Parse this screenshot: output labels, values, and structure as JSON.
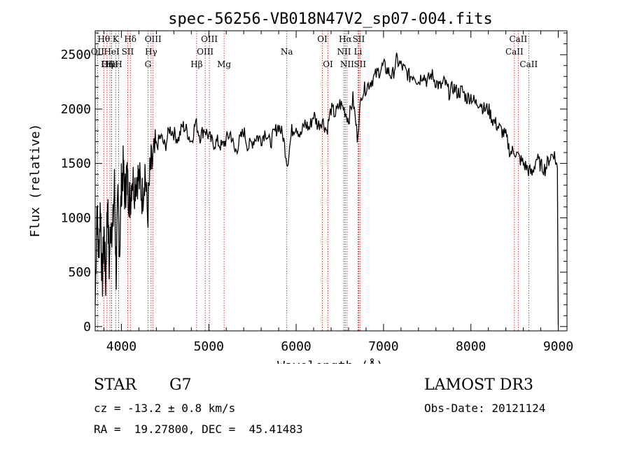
{
  "chart_data": {
    "type": "line",
    "title": "spec-56256-VB018N47V2_sp07-004.fits",
    "xlabel": "Wavelength (Å)",
    "ylabel": "Flux (relative)",
    "xlim": [
      3700,
      9100
    ],
    "ylim": [
      -40,
      2720
    ],
    "xticks": [
      4000,
      5000,
      6000,
      7000,
      8000,
      9000
    ],
    "yticks": [
      0,
      500,
      1000,
      1500,
      2000,
      2500
    ],
    "grid": false,
    "line_color": "#000000",
    "marker_color": "#cc0000",
    "spectral_lines": [
      {
        "label": "Hθ",
        "wavelength": 3798,
        "row": 1
      },
      {
        "label": "OII",
        "wavelength": 3727,
        "row": 2
      },
      {
        "label": "OIII",
        "wavelength": 3869,
        "row": 3
      },
      {
        "label": "Hε",
        "wavelength": 3889,
        "row": 3
      },
      {
        "label": "K",
        "wavelength": 3934,
        "row": 1
      },
      {
        "label": "HeI",
        "wavelength": 3889,
        "row": 2
      },
      {
        "label": "SII",
        "wavelength": 4072,
        "row": 2
      },
      {
        "label": "Hη",
        "wavelength": 3835,
        "row": 3
      },
      {
        "label": "H",
        "wavelength": 3968,
        "row": 3
      },
      {
        "label": "Hδ",
        "wavelength": 4102,
        "row": 1
      },
      {
        "label": "OIII",
        "wavelength": 4363,
        "row": 1
      },
      {
        "label": "Hγ",
        "wavelength": 4340,
        "row": 2
      },
      {
        "label": "G",
        "wavelength": 4304,
        "row": 3
      },
      {
        "label": "Hβ",
        "wavelength": 4861,
        "row": 3
      },
      {
        "label": "OIII",
        "wavelength": 5007,
        "row": 1
      },
      {
        "label": "OIII",
        "wavelength": 4959,
        "row": 2
      },
      {
        "label": "Mg",
        "wavelength": 5175,
        "row": 3
      },
      {
        "label": "Na",
        "wavelength": 5893,
        "row": 2
      },
      {
        "label": "OI",
        "wavelength": 6300,
        "row": 1
      },
      {
        "label": "OI",
        "wavelength": 6364,
        "row": 3
      },
      {
        "label": "Hα",
        "wavelength": 6563,
        "row": 1
      },
      {
        "label": "SII",
        "wavelength": 6716,
        "row": 1
      },
      {
        "label": "NII",
        "wavelength": 6548,
        "row": 2
      },
      {
        "label": "Li",
        "wavelength": 6708,
        "row": 2
      },
      {
        "label": "NII",
        "wavelength": 6583,
        "row": 3
      },
      {
        "label": "SII",
        "wavelength": 6731,
        "row": 3
      },
      {
        "label": "CaII",
        "wavelength": 8542,
        "row": 1
      },
      {
        "label": "CaII",
        "wavelength": 8498,
        "row": 2
      },
      {
        "label": "CaII",
        "wavelength": 8662,
        "row": 3
      }
    ],
    "series": [
      {
        "x": [
          3700,
          3720,
          3740,
          3760,
          3780,
          3800,
          3820,
          3840,
          3860,
          3880,
          3900,
          3920,
          3940,
          3960,
          3980,
          4000,
          4020,
          4040,
          4060,
          4080,
          4100,
          4120,
          4150,
          4180,
          4210,
          4240,
          4270,
          4300,
          4330,
          4360,
          4400,
          4450,
          4500,
          4550,
          4600,
          4650,
          4700,
          4750,
          4800,
          4850,
          4900,
          4950,
          5000,
          5050,
          5100,
          5150,
          5200,
          5250,
          5300,
          5350,
          5400,
          5450,
          5500,
          5550,
          5600,
          5650,
          5700,
          5750,
          5800,
          5850,
          5900,
          5950,
          6000,
          6050,
          6100,
          6150,
          6200,
          6250,
          6300,
          6350,
          6400,
          6450,
          6500,
          6550,
          6600,
          6650,
          6700,
          6750,
          6800,
          6850,
          6900,
          6950,
          7000,
          7050,
          7100,
          7150,
          7200,
          7250,
          7300,
          7350,
          7400,
          7450,
          7500,
          7550,
          7600,
          7650,
          7700,
          7750,
          7800,
          7850,
          7900,
          7950,
          8000,
          8050,
          8100,
          8150,
          8200,
          8250,
          8300,
          8350,
          8400,
          8450,
          8500,
          8550,
          8600,
          8650,
          8700,
          8750,
          8800,
          8850,
          8900,
          8950,
          8990,
          9000
        ],
        "y": [
          200,
          1100,
          650,
          1150,
          350,
          900,
          400,
          1200,
          550,
          1000,
          850,
          1300,
          500,
          1150,
          700,
          1300,
          1450,
          1200,
          1400,
          1250,
          1150,
          1380,
          1300,
          1400,
          1320,
          1200,
          1450,
          1000,
          1450,
          1500,
          1650,
          1750,
          1650,
          1820,
          1780,
          1720,
          1850,
          1800,
          1700,
          1880,
          1750,
          1820,
          1750,
          1680,
          1700,
          1650,
          1720,
          1780,
          1600,
          1700,
          1800,
          1650,
          1700,
          1750,
          1720,
          1800,
          1680,
          1780,
          1850,
          1750,
          1500,
          1800,
          1850,
          1750,
          1870,
          1820,
          1950,
          1850,
          1900,
          1800,
          2000,
          1950,
          2050,
          2000,
          1900,
          2100,
          1750,
          2150,
          2200,
          2250,
          2300,
          2350,
          2400,
          2350,
          2300,
          2450,
          2400,
          2350,
          2300,
          2320,
          2250,
          2330,
          2250,
          2320,
          2250,
          2200,
          2250,
          2150,
          2200,
          2150,
          2170,
          2100,
          2120,
          2050,
          2070,
          2000,
          2000,
          1900,
          1850,
          1800,
          1750,
          1600,
          1620,
          1550,
          1500,
          1450,
          1400,
          1550,
          1480,
          1450,
          1550,
          1600,
          1450,
          0
        ]
      }
    ]
  },
  "info": {
    "object_class": "STAR",
    "subclass": "G7",
    "survey": "LAMOST DR3",
    "cz": "cz = -13.2 ± 0.8 km/s",
    "obs_date": "Obs-Date: 20121124",
    "coords": "RA =  19.27800, DEC =  45.41483"
  }
}
